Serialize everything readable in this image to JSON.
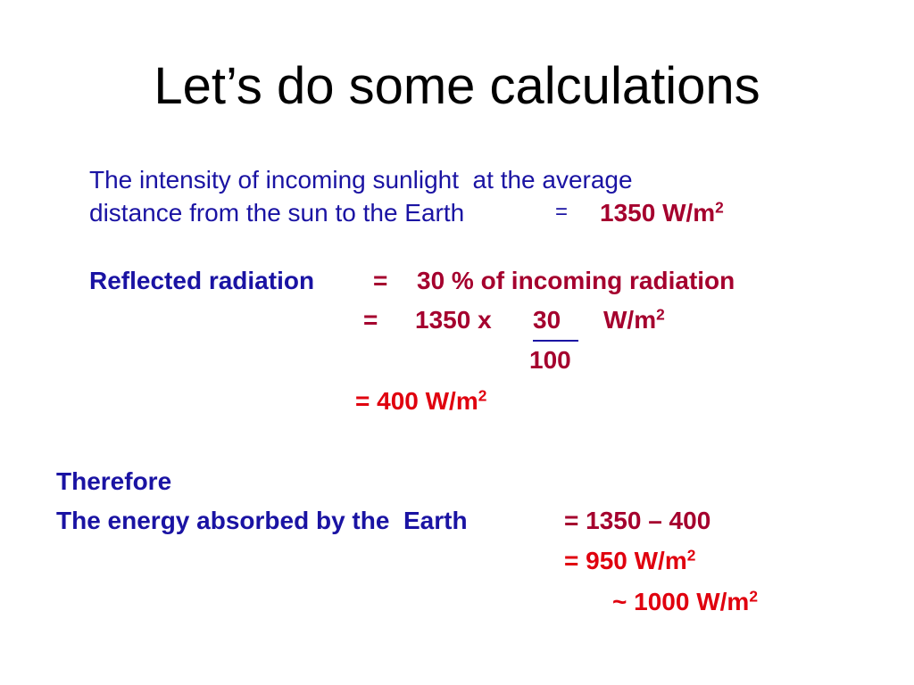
{
  "title": "Let’s do some calculations",
  "intro": {
    "line1": "The intensity of incoming sunlight  at the average",
    "line2": "distance from the sun to the Earth",
    "equals": "=",
    "value": "1350 W/m",
    "exponent": "2"
  },
  "reflected": {
    "label": "Reflected radiation",
    "equals": "=",
    "text": "30 % of incoming radiation",
    "step": {
      "equals": "=",
      "factor": "1350 x",
      "numerator": "30",
      "denominator": "100",
      "unit": "W/m",
      "exponent": "2"
    },
    "result": {
      "text": "= 400 W/m",
      "exponent": "2"
    }
  },
  "therefore": "Therefore",
  "absorbed": {
    "label": "The energy absorbed by the  Earth",
    "expression": "= 1350 – 400",
    "result": {
      "text": "= 950 W/m",
      "exponent": "2"
    },
    "approx": {
      "text": "~ 1000 W/m",
      "exponent": "2"
    }
  }
}
